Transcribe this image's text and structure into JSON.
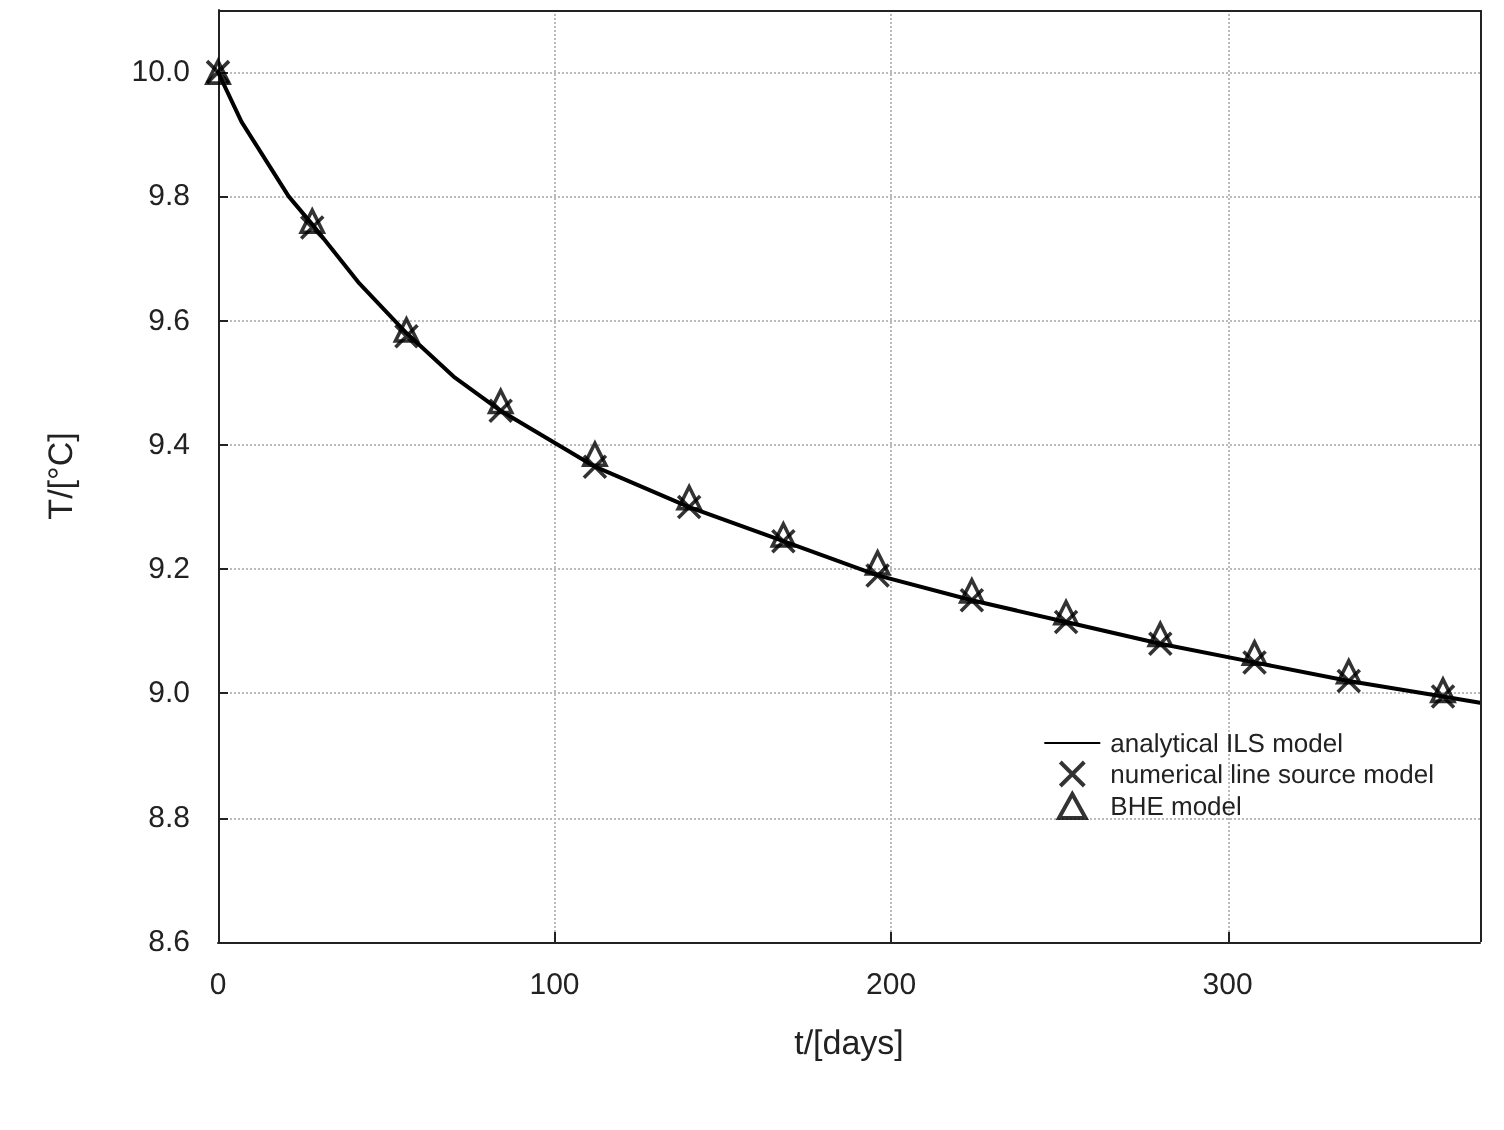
{
  "chart_data": {
    "type": "line",
    "xlabel": "t/[days]",
    "ylabel": "T/[°C]",
    "xlim": [
      0,
      375
    ],
    "xticks": [
      0,
      100,
      200,
      300
    ],
    "ylim": [
      8.6,
      10.1
    ],
    "yticks": [
      8.6,
      8.8,
      {
        "value": 9,
        "label": "9.0"
      },
      9.2,
      9.4,
      9.6,
      9.8,
      {
        "value": 10,
        "label": "10.0"
      }
    ],
    "grid": true,
    "legend": "bottom right",
    "series": [
      {
        "name": "analytical ILS model",
        "color": "#000000",
        "marker": "none",
        "line_style": "solid",
        "x": [
          0,
          7,
          14,
          21,
          28,
          42,
          56,
          70,
          84,
          112,
          140,
          168,
          196,
          224,
          252,
          280,
          308,
          336,
          364,
          375
        ],
        "values": [
          10.0,
          9.92,
          9.86,
          9.8,
          9.755,
          9.66,
          9.58,
          9.51,
          9.455,
          9.365,
          9.3,
          9.245,
          9.19,
          9.15,
          9.115,
          9.08,
          9.05,
          9.02,
          8.995,
          8.985
        ]
      },
      {
        "name": "numerical line source model",
        "type": "scatter",
        "color": "#000000",
        "marker": "cross",
        "x": [
          0,
          28,
          56,
          84,
          112,
          140,
          168,
          196,
          224,
          252,
          280,
          308,
          336,
          364
        ],
        "values": [
          10.0,
          9.75,
          9.575,
          9.455,
          9.365,
          9.3,
          9.245,
          9.19,
          9.15,
          9.115,
          9.08,
          9.05,
          9.02,
          8.995
        ]
      },
      {
        "name": "BHE model",
        "type": "scatter",
        "color": "#000000",
        "marker": "triangle",
        "x": [
          0,
          28,
          56,
          84,
          112,
          140,
          168,
          196,
          224,
          252,
          280,
          308,
          336,
          364
        ],
        "values": [
          10.0,
          9.76,
          9.585,
          9.47,
          9.385,
          9.315,
          9.255,
          9.21,
          9.165,
          9.13,
          9.095,
          9.065,
          9.035,
          9.005
        ]
      }
    ]
  }
}
